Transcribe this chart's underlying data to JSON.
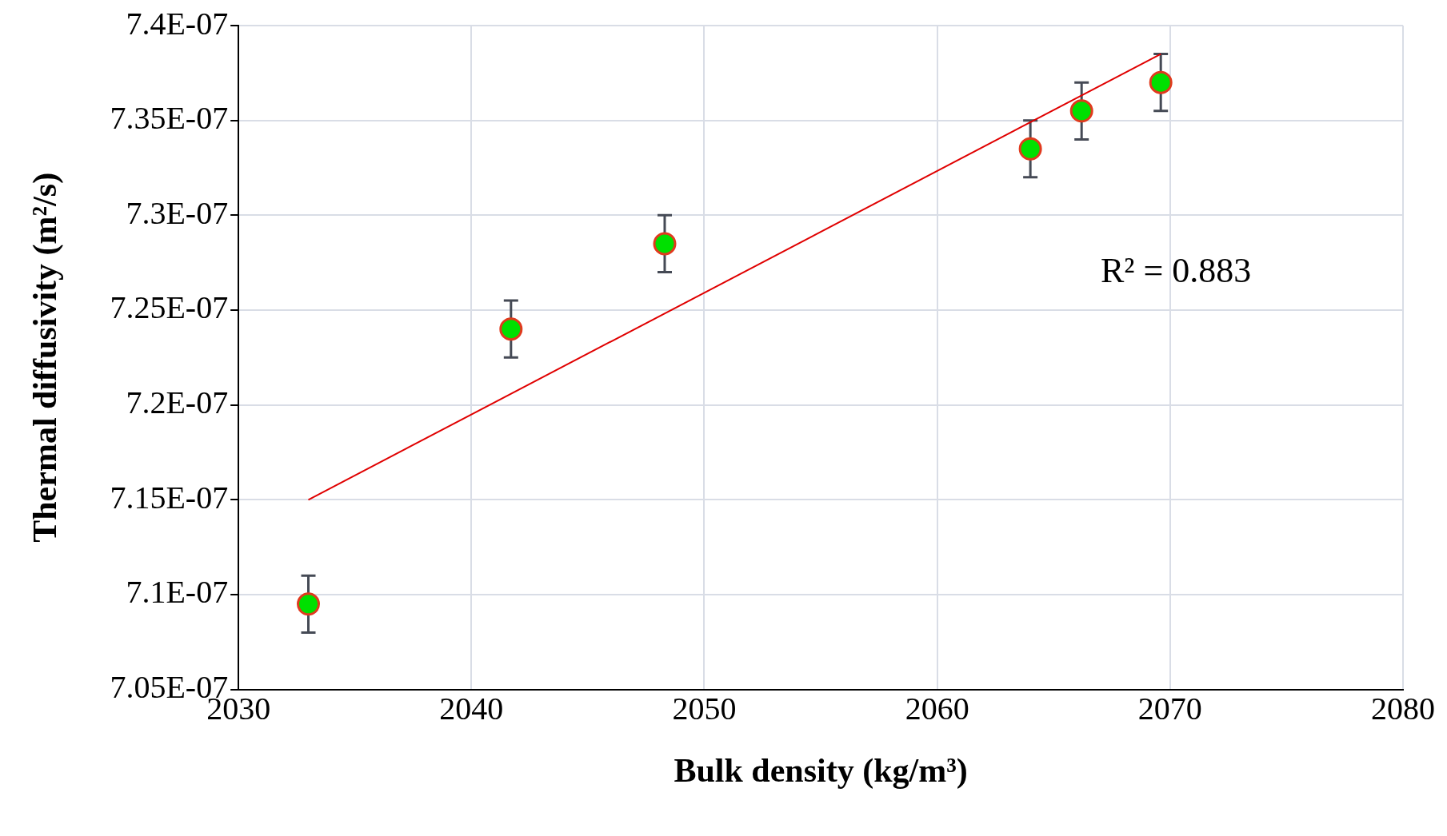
{
  "chart_data": {
    "type": "scatter",
    "xlabel": "Bulk density (kg/m³)",
    "ylabel": "Thermal diffusivity (m²/s)",
    "xlim": [
      2030,
      2080
    ],
    "xticks": [
      2030,
      2040,
      2050,
      2060,
      2070,
      2080
    ],
    "ylim": [
      7.05e-07,
      7.4e-07
    ],
    "yticks": [
      {
        "value": 7.05e-07,
        "label": "7.05E-07"
      },
      {
        "value": 7.1e-07,
        "label": "7.1E-07"
      },
      {
        "value": 7.15e-07,
        "label": "7.15E-07"
      },
      {
        "value": 7.2e-07,
        "label": "7.2E-07"
      },
      {
        "value": 7.25e-07,
        "label": "7.25E-07"
      },
      {
        "value": 7.3e-07,
        "label": "7.3E-07"
      },
      {
        "value": 7.35e-07,
        "label": "7.35E-07"
      },
      {
        "value": 7.4e-07,
        "label": "7.4E-07"
      }
    ],
    "grid": true,
    "legend": false,
    "annotations": [
      "R² = 0.883"
    ],
    "series": [
      {
        "type": "scatter",
        "color": "#00e000",
        "marker": "circle",
        "x": [
          2033.0,
          2041.7,
          2048.3,
          2064.0,
          2066.2,
          2069.6
        ],
        "values": [
          7.095e-07,
          7.24e-07,
          7.285e-07,
          7.335e-07,
          7.355e-07,
          7.37e-07
        ],
        "errors": [
          1.5e-09,
          1.5e-09,
          1.5e-09,
          1.5e-09,
          1.5e-09,
          1.5e-09
        ]
      },
      {
        "type": "line",
        "color": "#e00000",
        "marker": "none",
        "line_style": "solid",
        "x": [
          2033.0,
          2069.6
        ],
        "values": [
          7.15e-07,
          7.385e-07
        ]
      }
    ]
  }
}
